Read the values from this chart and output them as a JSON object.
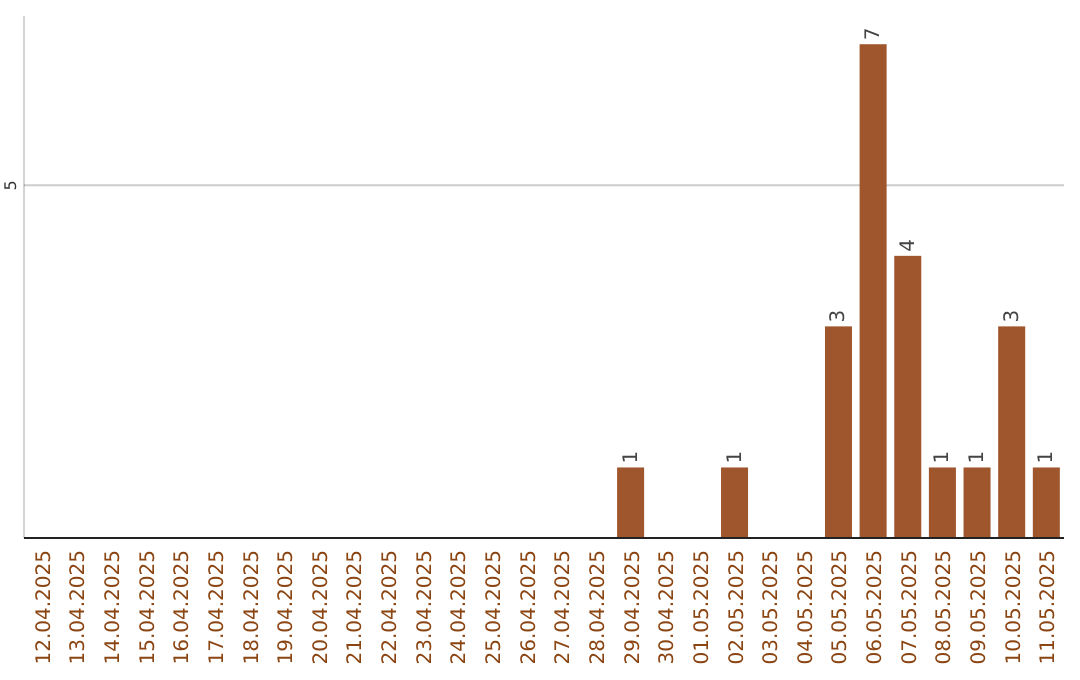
{
  "chart_data": {
    "type": "bar",
    "categories": [
      "12.04.2025",
      "13.04.2025",
      "14.04.2025",
      "15.04.2025",
      "16.04.2025",
      "17.04.2025",
      "18.04.2025",
      "19.04.2025",
      "20.04.2025",
      "21.04.2025",
      "22.04.2025",
      "23.04.2025",
      "24.04.2025",
      "25.04.2025",
      "26.04.2025",
      "27.04.2025",
      "28.04.2025",
      "29.04.2025",
      "30.04.2025",
      "01.05.2025",
      "02.05.2025",
      "03.05.2025",
      "04.05.2025",
      "05.05.2025",
      "06.05.2025",
      "07.05.2025",
      "08.05.2025",
      "09.05.2025",
      "10.05.2025",
      "11.05.2025"
    ],
    "values": [
      null,
      null,
      null,
      null,
      null,
      null,
      null,
      null,
      null,
      null,
      null,
      null,
      null,
      null,
      null,
      null,
      null,
      1,
      null,
      null,
      1,
      null,
      null,
      3,
      7,
      4,
      1,
      1,
      3,
      1
    ],
    "value_labels": [
      null,
      null,
      null,
      null,
      null,
      null,
      null,
      null,
      null,
      null,
      null,
      null,
      null,
      null,
      null,
      null,
      null,
      "1",
      null,
      null,
      "1",
      null,
      null,
      "3",
      "7",
      "4",
      "1",
      "1",
      "3",
      "1"
    ],
    "color": "#a0562c",
    "ylim": [
      0,
      7.4
    ],
    "yticks": [
      5
    ],
    "grid": "y"
  }
}
